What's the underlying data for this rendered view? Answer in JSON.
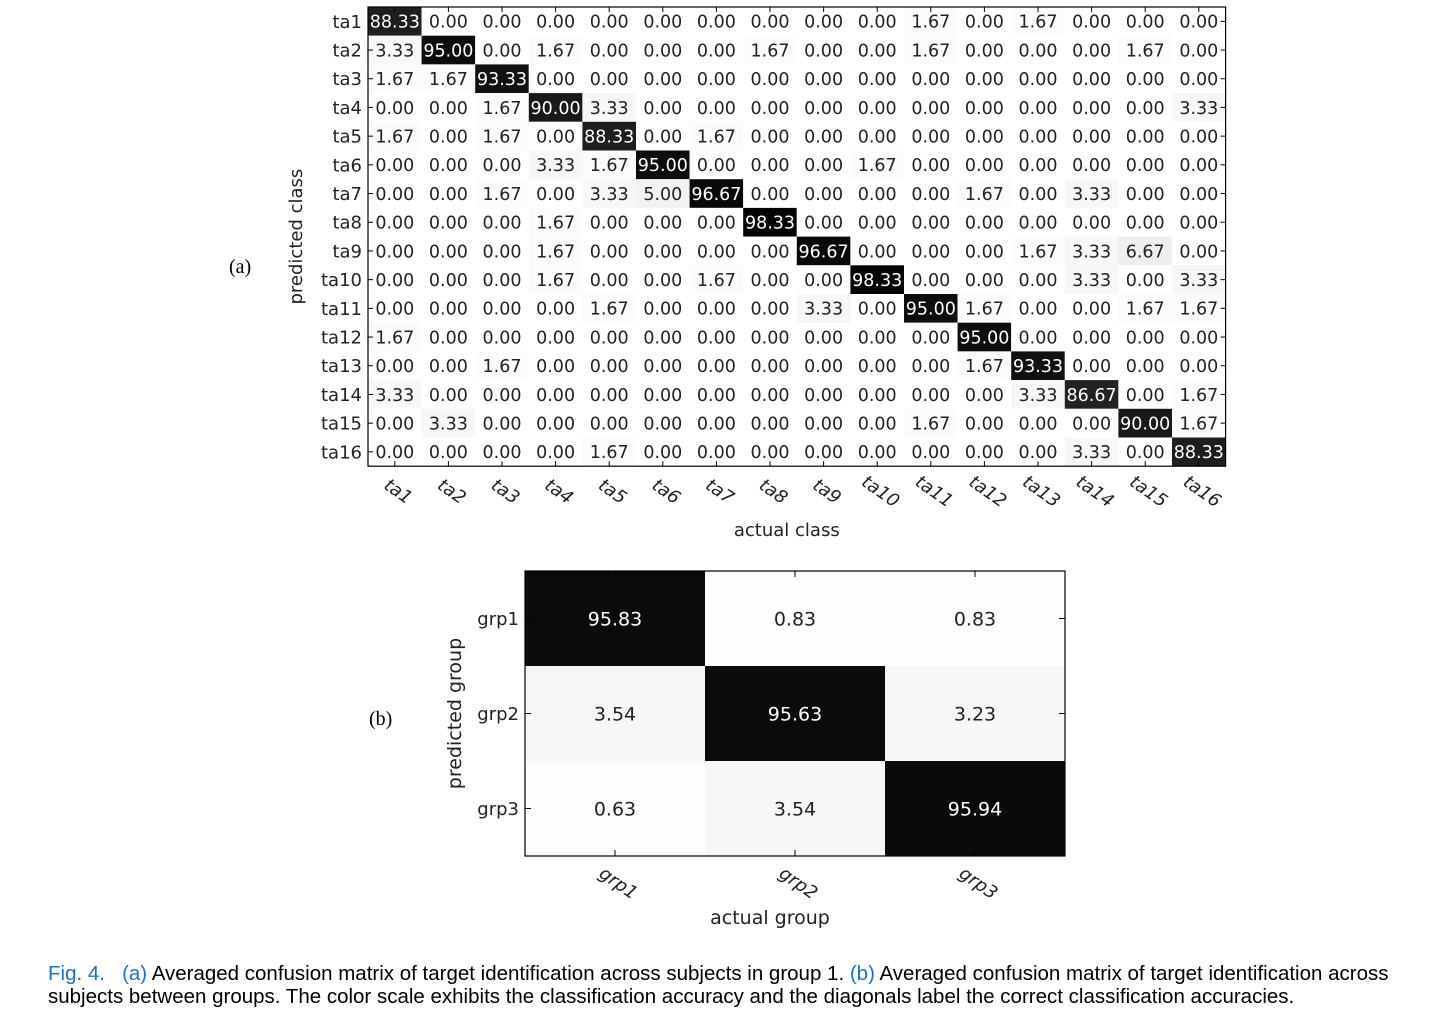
{
  "caption": {
    "fig_label": "Fig. 4.",
    "a_label": "(a)",
    "a_text": "Averaged confusion matrix of target identification across subjects in group 1.",
    "b_label": "(b)",
    "b_text": "Averaged confusion matrix of target identification across subjects between groups. The color scale exhibits the classification accuracy and the diagonals label the correct classification accuracies."
  },
  "panels": {
    "a": "(a)",
    "b": "(b)"
  },
  "chart_data": [
    {
      "type": "heatmap",
      "title": "",
      "xlabel": "actual class",
      "ylabel": "predicted class",
      "x_categories": [
        "ta1",
        "ta2",
        "ta3",
        "ta4",
        "ta5",
        "ta6",
        "ta7",
        "ta8",
        "ta9",
        "ta10",
        "ta11",
        "ta12",
        "ta13",
        "ta14",
        "ta15",
        "ta16"
      ],
      "y_categories": [
        "ta1",
        "ta2",
        "ta3",
        "ta4",
        "ta5",
        "ta6",
        "ta7",
        "ta8",
        "ta9",
        "ta10",
        "ta11",
        "ta12",
        "ta13",
        "ta14",
        "ta15",
        "ta16"
      ],
      "values": [
        [
          "88.33",
          "0.00",
          "0.00",
          "0.00",
          "0.00",
          "0.00",
          "0.00",
          "0.00",
          "0.00",
          "0.00",
          "1.67",
          "0.00",
          "1.67",
          "0.00",
          "0.00",
          "0.00"
        ],
        [
          "3.33",
          "95.00",
          "0.00",
          "1.67",
          "0.00",
          "0.00",
          "0.00",
          "1.67",
          "0.00",
          "0.00",
          "1.67",
          "0.00",
          "0.00",
          "0.00",
          "1.67",
          "0.00"
        ],
        [
          "1.67",
          "1.67",
          "93.33",
          "0.00",
          "0.00",
          "0.00",
          "0.00",
          "0.00",
          "0.00",
          "0.00",
          "0.00",
          "0.00",
          "0.00",
          "0.00",
          "0.00",
          "0.00"
        ],
        [
          "0.00",
          "0.00",
          "1.67",
          "90.00",
          "3.33",
          "0.00",
          "0.00",
          "0.00",
          "0.00",
          "0.00",
          "0.00",
          "0.00",
          "0.00",
          "0.00",
          "0.00",
          "3.33"
        ],
        [
          "1.67",
          "0.00",
          "1.67",
          "0.00",
          "88.33",
          "0.00",
          "1.67",
          "0.00",
          "0.00",
          "0.00",
          "0.00",
          "0.00",
          "0.00",
          "0.00",
          "0.00",
          "0.00"
        ],
        [
          "0.00",
          "0.00",
          "0.00",
          "3.33",
          "1.67",
          "95.00",
          "0.00",
          "0.00",
          "0.00",
          "1.67",
          "0.00",
          "0.00",
          "0.00",
          "0.00",
          "0.00",
          "0.00"
        ],
        [
          "0.00",
          "0.00",
          "1.67",
          "0.00",
          "3.33",
          "5.00",
          "96.67",
          "0.00",
          "0.00",
          "0.00",
          "0.00",
          "1.67",
          "0.00",
          "3.33",
          "0.00",
          "0.00"
        ],
        [
          "0.00",
          "0.00",
          "0.00",
          "1.67",
          "0.00",
          "0.00",
          "0.00",
          "98.33",
          "0.00",
          "0.00",
          "0.00",
          "0.00",
          "0.00",
          "0.00",
          "0.00",
          "0.00"
        ],
        [
          "0.00",
          "0.00",
          "0.00",
          "1.67",
          "0.00",
          "0.00",
          "0.00",
          "0.00",
          "96.67",
          "0.00",
          "0.00",
          "0.00",
          "1.67",
          "3.33",
          "6.67",
          "0.00"
        ],
        [
          "0.00",
          "0.00",
          "0.00",
          "1.67",
          "0.00",
          "0.00",
          "1.67",
          "0.00",
          "0.00",
          "98.33",
          "0.00",
          "0.00",
          "0.00",
          "3.33",
          "0.00",
          "3.33"
        ],
        [
          "0.00",
          "0.00",
          "0.00",
          "0.00",
          "1.67",
          "0.00",
          "0.00",
          "0.00",
          "3.33",
          "0.00",
          "95.00",
          "1.67",
          "0.00",
          "0.00",
          "1.67",
          "1.67"
        ],
        [
          "1.67",
          "0.00",
          "0.00",
          "0.00",
          "0.00",
          "0.00",
          "0.00",
          "0.00",
          "0.00",
          "0.00",
          "0.00",
          "95.00",
          "0.00",
          "0.00",
          "0.00",
          "0.00"
        ],
        [
          "0.00",
          "0.00",
          "1.67",
          "0.00",
          "0.00",
          "0.00",
          "0.00",
          "0.00",
          "0.00",
          "0.00",
          "0.00",
          "1.67",
          "93.33",
          "0.00",
          "0.00",
          "0.00"
        ],
        [
          "3.33",
          "0.00",
          "0.00",
          "0.00",
          "0.00",
          "0.00",
          "0.00",
          "0.00",
          "0.00",
          "0.00",
          "0.00",
          "0.00",
          "3.33",
          "86.67",
          "0.00",
          "1.67"
        ],
        [
          "0.00",
          "3.33",
          "0.00",
          "0.00",
          "0.00",
          "0.00",
          "0.00",
          "0.00",
          "0.00",
          "0.00",
          "1.67",
          "0.00",
          "0.00",
          "0.00",
          "90.00",
          "1.67"
        ],
        [
          "0.00",
          "0.00",
          "0.00",
          "0.00",
          "1.67",
          "0.00",
          "0.00",
          "0.00",
          "0.00",
          "0.00",
          "0.00",
          "0.00",
          "0.00",
          "3.33",
          "0.00",
          "88.33"
        ]
      ],
      "color_scale": [
        "#ffffff",
        "#000000"
      ]
    },
    {
      "type": "heatmap",
      "title": "",
      "xlabel": "actual group",
      "ylabel": "predicted group",
      "x_categories": [
        "grp1",
        "grp2",
        "grp3"
      ],
      "y_categories": [
        "grp1",
        "grp2",
        "grp3"
      ],
      "values": [
        [
          "95.83",
          "0.83",
          "0.83"
        ],
        [
          "3.54",
          "95.63",
          "3.23"
        ],
        [
          "0.63",
          "3.54",
          "95.94"
        ]
      ],
      "color_scale": [
        "#ffffff",
        "#000000"
      ]
    }
  ]
}
